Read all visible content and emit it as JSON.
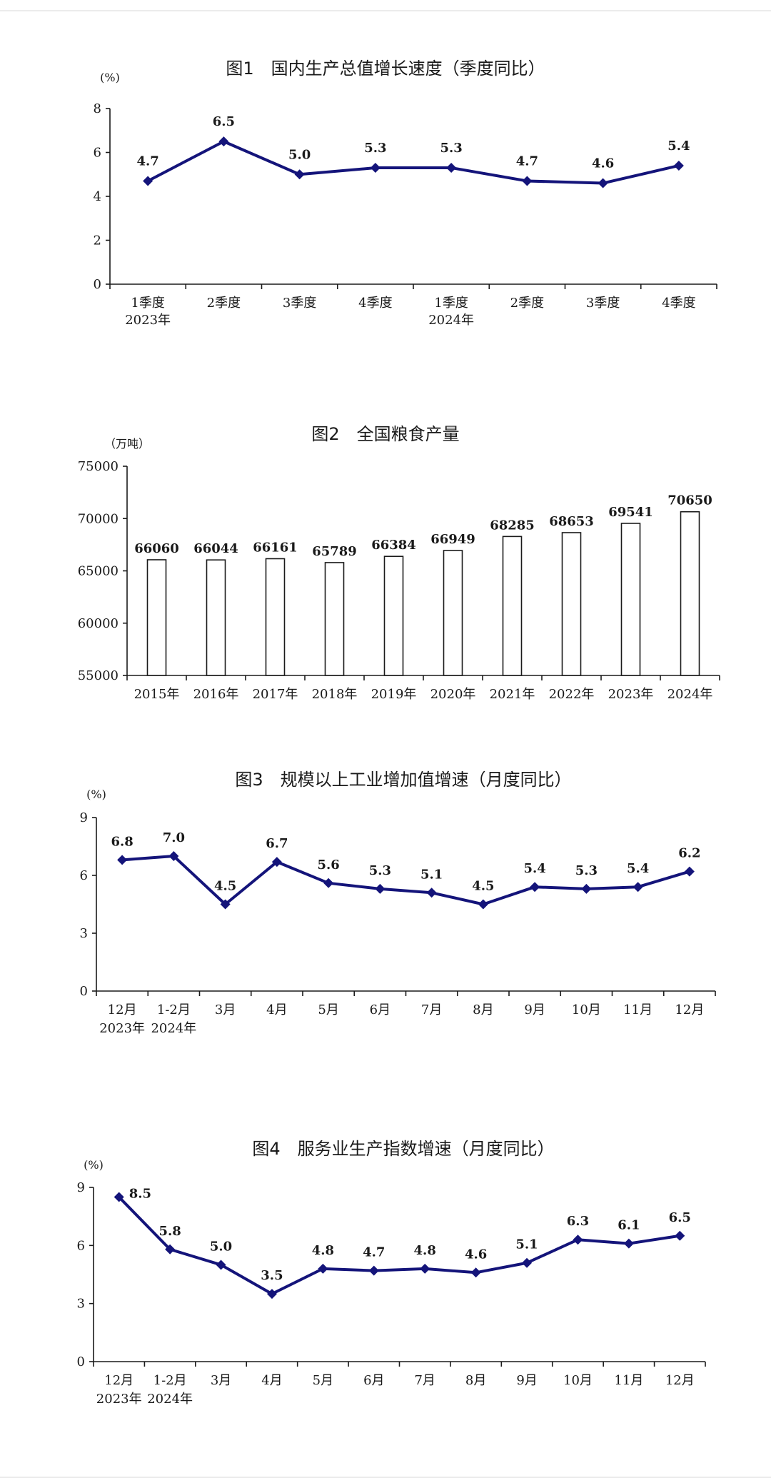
{
  "chart_data": [
    {
      "type": "line",
      "title": "图1　国内生产总值增长速度（季度同比）",
      "unit": "(%)",
      "categories": [
        "1季度",
        "2季度",
        "3季度",
        "4季度",
        "1季度",
        "2季度",
        "3季度",
        "4季度"
      ],
      "sub_labels": [
        "2023年",
        "",
        "",
        "",
        "2024年",
        "",
        "",
        ""
      ],
      "values": [
        4.7,
        6.5,
        5.0,
        5.3,
        5.3,
        4.7,
        4.6,
        5.4
      ],
      "value_labels": [
        "4.7",
        "6.5",
        "5.0",
        "5.3",
        "5.3",
        "4.7",
        "4.6",
        "5.4"
      ],
      "yticks": [
        "0",
        "2",
        "4",
        "6",
        "8"
      ],
      "ylim": [
        0,
        8
      ],
      "color": "#14147a",
      "grid": false
    },
    {
      "type": "bar",
      "title": "图2　全国粮食产量",
      "unit": "（万吨）",
      "categories": [
        "2015年",
        "2016年",
        "2017年",
        "2018年",
        "2019年",
        "2020年",
        "2021年",
        "2022年",
        "2023年",
        "2024年"
      ],
      "values": [
        66060,
        66044,
        66161,
        65789,
        66384,
        66949,
        68285,
        68653,
        69541,
        70650
      ],
      "value_labels": [
        "66060",
        "66044",
        "66161",
        "65789",
        "66384",
        "66949",
        "68285",
        "68653",
        "69541",
        "70650"
      ],
      "yticks": [
        "55000",
        "60000",
        "65000",
        "70000",
        "75000"
      ],
      "ylim": [
        55000,
        75000
      ],
      "color": "#ffffff",
      "grid": false
    },
    {
      "type": "line",
      "title": "图3　规模以上工业增加值增速（月度同比）",
      "unit": "(%)",
      "categories": [
        "12月",
        "1-2月",
        "3月",
        "4月",
        "5月",
        "6月",
        "7月",
        "8月",
        "9月",
        "10月",
        "11月",
        "12月"
      ],
      "sub_labels": [
        "2023年",
        "2024年",
        "",
        "",
        "",
        "",
        "",
        "",
        "",
        "",
        "",
        ""
      ],
      "values": [
        6.8,
        7.0,
        4.5,
        6.7,
        5.6,
        5.3,
        5.1,
        4.5,
        5.4,
        5.3,
        5.4,
        6.2
      ],
      "value_labels": [
        "6.8",
        "7.0",
        "4.5",
        "6.7",
        "5.6",
        "5.3",
        "5.1",
        "4.5",
        "5.4",
        "5.3",
        "5.4",
        "6.2"
      ],
      "yticks": [
        "0",
        "3",
        "6",
        "9"
      ],
      "ylim": [
        0,
        9
      ],
      "color": "#14147a",
      "grid": false
    },
    {
      "type": "line",
      "title": "图4　服务业生产指数增速（月度同比）",
      "unit": "(%)",
      "categories": [
        "12月",
        "1-2月",
        "3月",
        "4月",
        "5月",
        "6月",
        "7月",
        "8月",
        "9月",
        "10月",
        "11月",
        "12月"
      ],
      "sub_labels": [
        "2023年",
        "2024年",
        "",
        "",
        "",
        "",
        "",
        "",
        "",
        "",
        "",
        ""
      ],
      "values": [
        8.5,
        5.8,
        5.0,
        3.5,
        4.8,
        4.7,
        4.8,
        4.6,
        5.1,
        6.3,
        6.1,
        6.5
      ],
      "value_labels": [
        "8.5",
        "5.8",
        "5.0",
        "3.5",
        "4.8",
        "4.7",
        "4.8",
        "4.6",
        "5.1",
        "6.3",
        "6.1",
        "6.5"
      ],
      "yticks": [
        "0",
        "3",
        "6",
        "9"
      ],
      "ylim": [
        0,
        9
      ],
      "color": "#14147a",
      "grid": false
    }
  ]
}
